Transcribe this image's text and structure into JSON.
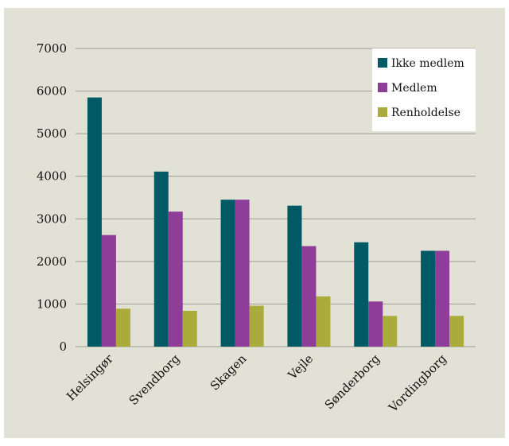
{
  "chart_data": {
    "type": "bar",
    "title": "",
    "xlabel": "",
    "ylabel": "",
    "ylim": [
      0,
      7000
    ],
    "yticks": [
      0,
      1000,
      2000,
      3000,
      4000,
      5000,
      6000,
      7000
    ],
    "grid": true,
    "legend_position": "top-right",
    "categories": [
      "Helsingør",
      "Svendborg",
      "Skagen",
      "Vejle",
      "Sønderborg",
      "Vordingborg"
    ],
    "series": [
      {
        "name": "Ikke medlem",
        "color": "#005a66",
        "values": [
          5850,
          4110,
          3450,
          3310,
          2450,
          2250
        ]
      },
      {
        "name": "Medlem",
        "color": "#8e3d98",
        "values": [
          2620,
          3170,
          3450,
          2360,
          1060,
          2250
        ]
      },
      {
        "name": "Renholdelse",
        "color": "#a9ab3a",
        "values": [
          890,
          840,
          960,
          1180,
          720,
          720
        ]
      }
    ]
  }
}
